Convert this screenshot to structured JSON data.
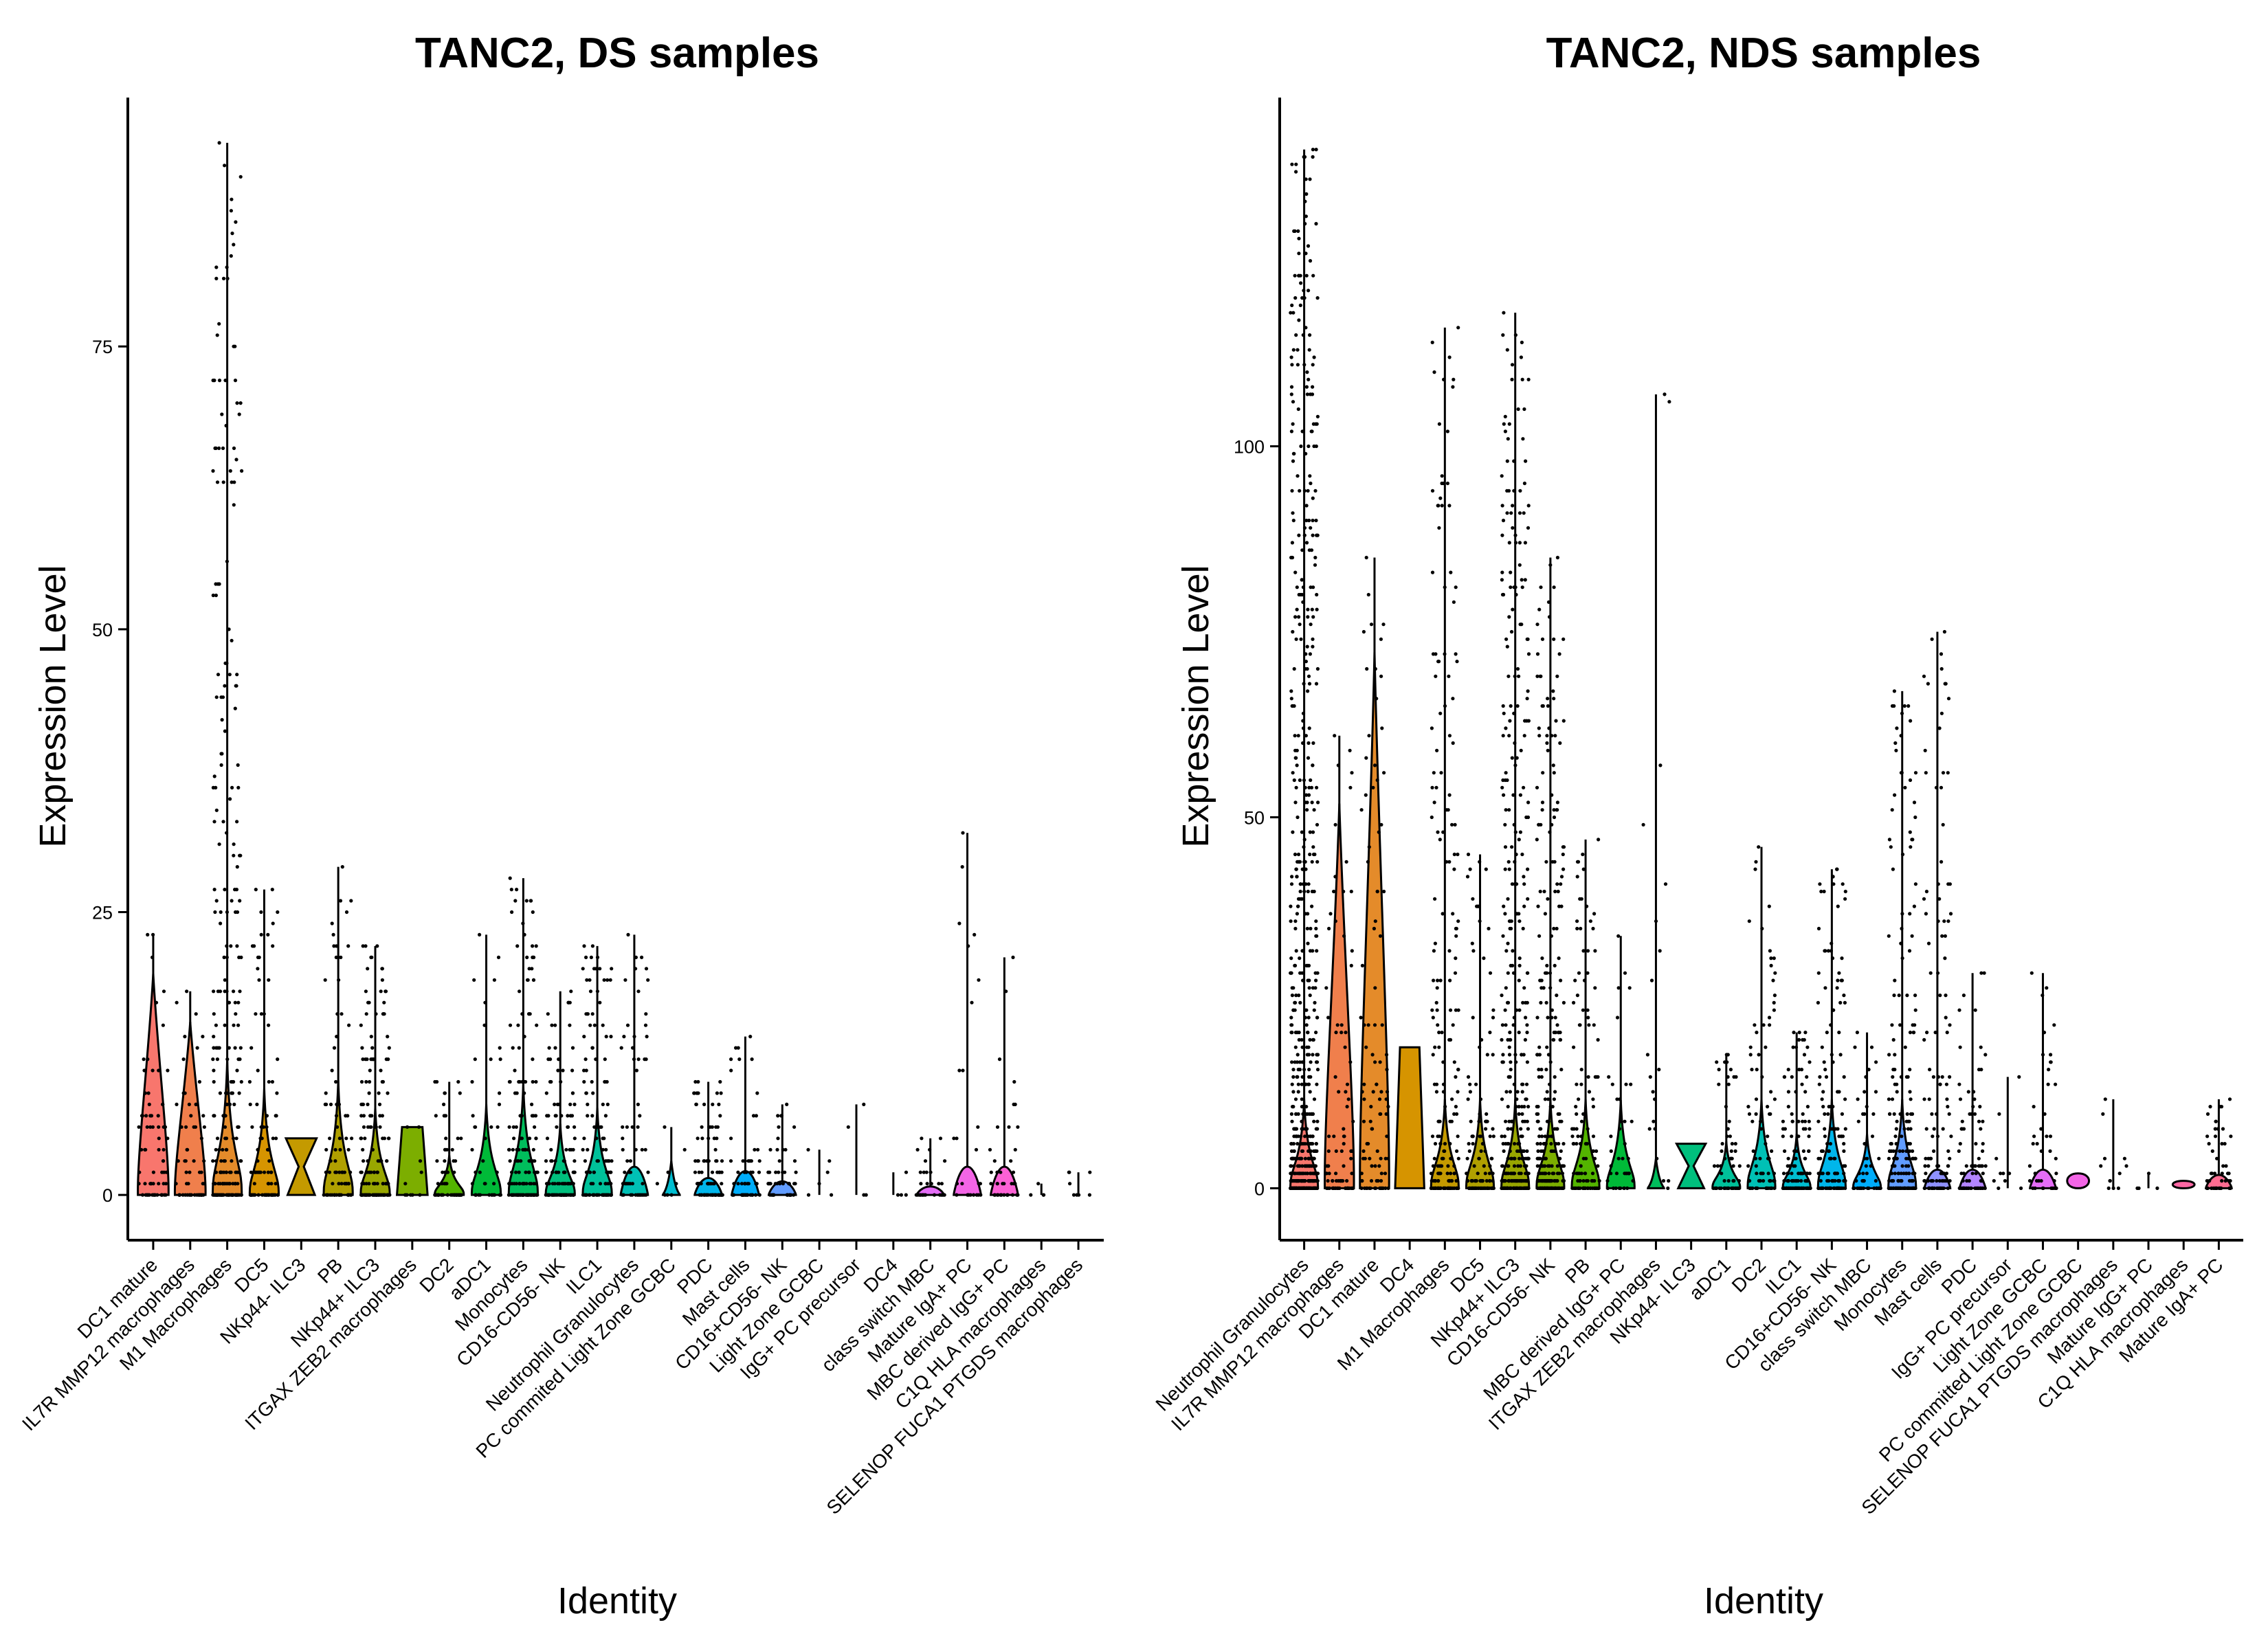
{
  "chart_data": [
    {
      "type": "violin",
      "title": "TANC2, DS samples",
      "xlabel": "Identity",
      "ylabel": "Expression Level",
      "ylim": [
        -4,
        97
      ],
      "yticks": [
        0,
        25,
        50,
        75
      ],
      "categories": [
        {
          "name": "DC1 mature",
          "max": 23,
          "n": 70,
          "shape": "wide",
          "color": "#F8766D"
        },
        {
          "name": "IL7R MMP12 macrophages",
          "max": 18,
          "n": 60,
          "shape": "wide",
          "color": "#F07F4C"
        },
        {
          "name": "M1 Macrophages",
          "max": 93,
          "n": 260,
          "shape": "low",
          "color": "#E48B2A"
        },
        {
          "name": "DC5",
          "max": 27,
          "n": 90,
          "shape": "low",
          "color": "#D69400"
        },
        {
          "name": "NKp44- ILC3",
          "max": 5,
          "n": 0,
          "shape": "bowtie",
          "color": "#C49A00"
        },
        {
          "name": "PB",
          "max": 29,
          "n": 80,
          "shape": "low",
          "color": "#B0A000"
        },
        {
          "name": "NKp44+ ILC3",
          "max": 22,
          "n": 150,
          "shape": "low",
          "color": "#98A600"
        },
        {
          "name": "ITGAX ZEB2 macrophages",
          "max": 6,
          "n": 10,
          "shape": "block",
          "color": "#7CAE00"
        },
        {
          "name": "DC2",
          "max": 10,
          "n": 60,
          "shape": "low",
          "color": "#53B400"
        },
        {
          "name": "aDC1",
          "max": 23,
          "n": 40,
          "shape": "low",
          "color": "#00BA38"
        },
        {
          "name": "Monocytes",
          "max": 28,
          "n": 170,
          "shape": "low",
          "color": "#00BD5C"
        },
        {
          "name": "CD16-CD56- NK",
          "max": 18,
          "n": 130,
          "shape": "low",
          "color": "#00BF7D"
        },
        {
          "name": "ILC1",
          "max": 22,
          "n": 120,
          "shape": "low",
          "color": "#00C19A"
        },
        {
          "name": "Neutrophil Granulocytes",
          "max": 23,
          "n": 60,
          "shape": "flat",
          "color": "#00C0B5"
        },
        {
          "name": "PC commited Light Zone GCBC",
          "max": 6,
          "n": 8,
          "shape": "tiny",
          "color": "#00BDD0"
        },
        {
          "name": "PDC",
          "max": 10,
          "n": 90,
          "shape": "flat",
          "color": "#00B6EB"
        },
        {
          "name": "Mast cells",
          "max": 14,
          "n": 60,
          "shape": "flat",
          "color": "#00ADFA"
        },
        {
          "name": "CD16+CD56- NK",
          "max": 8,
          "n": 50,
          "shape": "flat",
          "color": "#619CFF"
        },
        {
          "name": "Light Zone GCBC",
          "max": 4,
          "n": 6,
          "shape": "none",
          "color": "#8F91FF"
        },
        {
          "name": "IgG+ PC precursor",
          "max": 8,
          "n": 4,
          "shape": "none",
          "color": "#B385FF"
        },
        {
          "name": "DC4",
          "max": 2,
          "n": 4,
          "shape": "none",
          "color": "#CF78FF"
        },
        {
          "name": "class switch MBC",
          "max": 5,
          "n": 30,
          "shape": "flat",
          "color": "#E46DF6"
        },
        {
          "name": "Mature IgA+ PC",
          "max": 32,
          "n": 25,
          "shape": "flat",
          "color": "#F365E6"
        },
        {
          "name": "MBC derived IgG+ PC",
          "max": 21,
          "n": 40,
          "shape": "flat",
          "color": "#FC61D5"
        },
        {
          "name": "C1Q HLA macrophages",
          "max": 1,
          "n": 4,
          "shape": "none",
          "color": "#FF61C3"
        },
        {
          "name": "SELENOP FUCA1 PTGDS macrophages",
          "max": 2,
          "n": 8,
          "shape": "none",
          "color": "#FF67A4"
        }
      ]
    },
    {
      "type": "violin",
      "title": "TANC2, NDS samples",
      "xlabel": "Identity",
      "ylabel": "Expression Level",
      "ylim": [
        -7,
        147
      ],
      "yticks": [
        0,
        50,
        100
      ],
      "categories": [
        {
          "name": "Neutrophil Granulocytes",
          "max": 140,
          "n": 700,
          "shape": "low",
          "color": "#F8766D"
        },
        {
          "name": "IL7R MMP12 macrophages",
          "max": 61,
          "n": 90,
          "shape": "wide",
          "color": "#F07F4C"
        },
        {
          "name": "DC1 mature",
          "max": 85,
          "n": 100,
          "shape": "wide",
          "color": "#E48B2A"
        },
        {
          "name": "DC4",
          "max": 19,
          "n": 0,
          "shape": "block",
          "color": "#D69400"
        },
        {
          "name": "M1 Macrophages",
          "max": 116,
          "n": 200,
          "shape": "low",
          "color": "#C49A00"
        },
        {
          "name": "DC5",
          "max": 45,
          "n": 120,
          "shape": "low",
          "color": "#B0A000"
        },
        {
          "name": "NKp44+ ILC3",
          "max": 118,
          "n": 400,
          "shape": "low",
          "color": "#98A600"
        },
        {
          "name": "CD16-CD56- NK",
          "max": 85,
          "n": 300,
          "shape": "low",
          "color": "#7CAE00"
        },
        {
          "name": "PB",
          "max": 47,
          "n": 120,
          "shape": "low",
          "color": "#53B400"
        },
        {
          "name": "MBC derived IgG+ PC",
          "max": 34,
          "n": 40,
          "shape": "low",
          "color": "#00BA38"
        },
        {
          "name": "ITGAX ZEB2 macrophages",
          "max": 107,
          "n": 20,
          "shape": "tiny",
          "color": "#00BD5C"
        },
        {
          "name": "NKp44- ILC3",
          "max": 6,
          "n": 0,
          "shape": "bowtie",
          "color": "#00BF7D"
        },
        {
          "name": "aDC1",
          "max": 18,
          "n": 60,
          "shape": "low",
          "color": "#00C19A"
        },
        {
          "name": "DC2",
          "max": 46,
          "n": 80,
          "shape": "low",
          "color": "#00C0B5"
        },
        {
          "name": "ILC1",
          "max": 21,
          "n": 140,
          "shape": "low",
          "color": "#00BDD0"
        },
        {
          "name": "CD16+CD56- NK",
          "max": 43,
          "n": 150,
          "shape": "low",
          "color": "#00B6EB"
        },
        {
          "name": "class switch MBC",
          "max": 21,
          "n": 50,
          "shape": "low",
          "color": "#00ADFA"
        },
        {
          "name": "Monocytes",
          "max": 67,
          "n": 200,
          "shape": "low",
          "color": "#619CFF"
        },
        {
          "name": "Mast cells",
          "max": 75,
          "n": 120,
          "shape": "flat",
          "color": "#8F91FF"
        },
        {
          "name": "PDC",
          "max": 29,
          "n": 80,
          "shape": "flat",
          "color": "#B385FF"
        },
        {
          "name": "IgG+ PC precursor",
          "max": 15,
          "n": 10,
          "shape": "none",
          "color": "#CF78FF"
        },
        {
          "name": "Light Zone GCBC",
          "max": 29,
          "n": 40,
          "shape": "flat",
          "color": "#E46DF6"
        },
        {
          "name": "PC committed Light Zone GCBC",
          "max": 2,
          "n": 0,
          "shape": "blob",
          "color": "#F365E6"
        },
        {
          "name": "SELENOP FUCA1 PTGDS macrophages",
          "max": 12,
          "n": 12,
          "shape": "none",
          "color": "#FC61D5"
        },
        {
          "name": "Mature IgG+ PC",
          "max": 2,
          "n": 4,
          "shape": "none",
          "color": "#FF61C3"
        },
        {
          "name": "C1Q HLA macrophages",
          "max": 1,
          "n": 0,
          "shape": "blob",
          "color": "#FF67A4"
        },
        {
          "name": "Mature IgA+ PC",
          "max": 12,
          "n": 50,
          "shape": "flat",
          "color": "#FF6C91"
        }
      ]
    }
  ]
}
